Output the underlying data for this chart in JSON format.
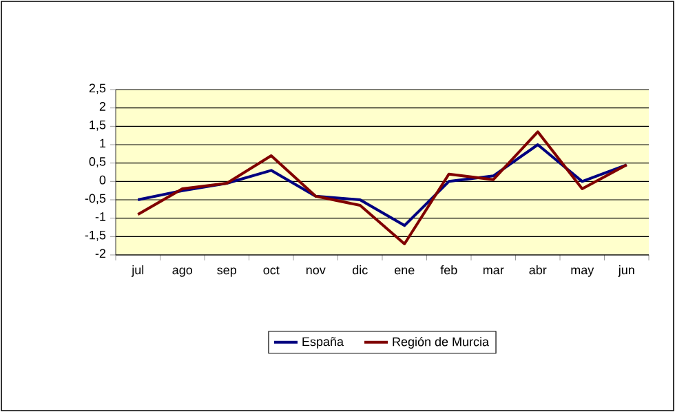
{
  "chart_data": {
    "type": "line",
    "categories": [
      "jul",
      "ago",
      "sep",
      "oct",
      "nov",
      "dic",
      "ene",
      "feb",
      "mar",
      "abr",
      "may",
      "jun"
    ],
    "series": [
      {
        "name": "España",
        "color": "#000080",
        "values": [
          -0.5,
          -0.25,
          -0.05,
          0.3,
          -0.4,
          -0.5,
          -1.2,
          0.0,
          0.15,
          1.0,
          0.0,
          0.45
        ]
      },
      {
        "name": "Región de Murcia",
        "color": "#800000",
        "values": [
          -0.9,
          -0.2,
          -0.05,
          0.7,
          -0.4,
          -0.65,
          -1.7,
          0.2,
          0.05,
          1.35,
          -0.2,
          0.45
        ]
      }
    ],
    "ylim": [
      -2,
      2.5
    ],
    "yticks": [
      -2,
      {
        "value": -1.5,
        "label": "-1,5"
      },
      -1,
      {
        "value": -0.5,
        "label": "-0,5"
      },
      0,
      {
        "value": 0.5,
        "label": "0,5"
      },
      1,
      {
        "value": 1.5,
        "label": "1,5"
      },
      2,
      {
        "value": 2.5,
        "label": "2,5"
      }
    ],
    "grid": "y",
    "legend": "bottom"
  }
}
